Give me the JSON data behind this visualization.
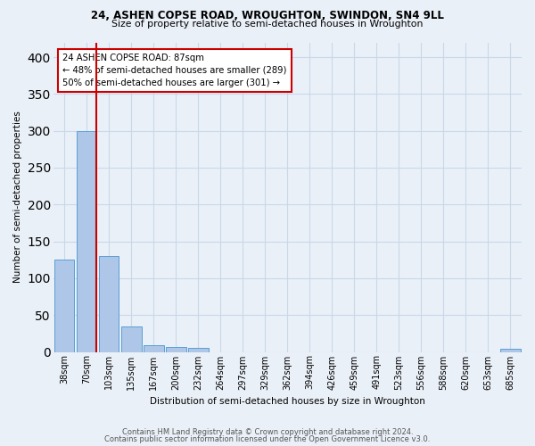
{
  "title1": "24, ASHEN COPSE ROAD, WROUGHTON, SWINDON, SN4 9LL",
  "title2": "Size of property relative to semi-detached houses in Wroughton",
  "xlabel": "Distribution of semi-detached houses by size in Wroughton",
  "ylabel": "Number of semi-detached properties",
  "footer1": "Contains HM Land Registry data © Crown copyright and database right 2024.",
  "footer2": "Contains public sector information licensed under the Open Government Licence v3.0.",
  "bin_labels": [
    "38sqm",
    "70sqm",
    "103sqm",
    "135sqm",
    "167sqm",
    "200sqm",
    "232sqm",
    "264sqm",
    "297sqm",
    "329sqm",
    "362sqm",
    "394sqm",
    "426sqm",
    "459sqm",
    "491sqm",
    "523sqm",
    "556sqm",
    "588sqm",
    "620sqm",
    "653sqm",
    "685sqm"
  ],
  "bar_values": [
    125,
    300,
    130,
    35,
    9,
    7,
    5,
    0,
    0,
    0,
    0,
    0,
    0,
    0,
    0,
    0,
    0,
    0,
    0,
    0,
    4
  ],
  "bar_color": "#aec6e8",
  "bar_edge_color": "#5a9fd4",
  "grid_color": "#c8d8e8",
  "background_color": "#eaf0f8",
  "property_bin_index": 1,
  "red_line_color": "#cc0000",
  "annotation_text": "24 ASHEN COPSE ROAD: 87sqm\n← 48% of semi-detached houses are smaller (289)\n50% of semi-detached houses are larger (301) →",
  "annotation_box_color": "white",
  "annotation_box_edge": "#cc0000",
  "ylim": [
    0,
    420
  ],
  "yticks": [
    0,
    50,
    100,
    150,
    200,
    250,
    300,
    350,
    400
  ]
}
